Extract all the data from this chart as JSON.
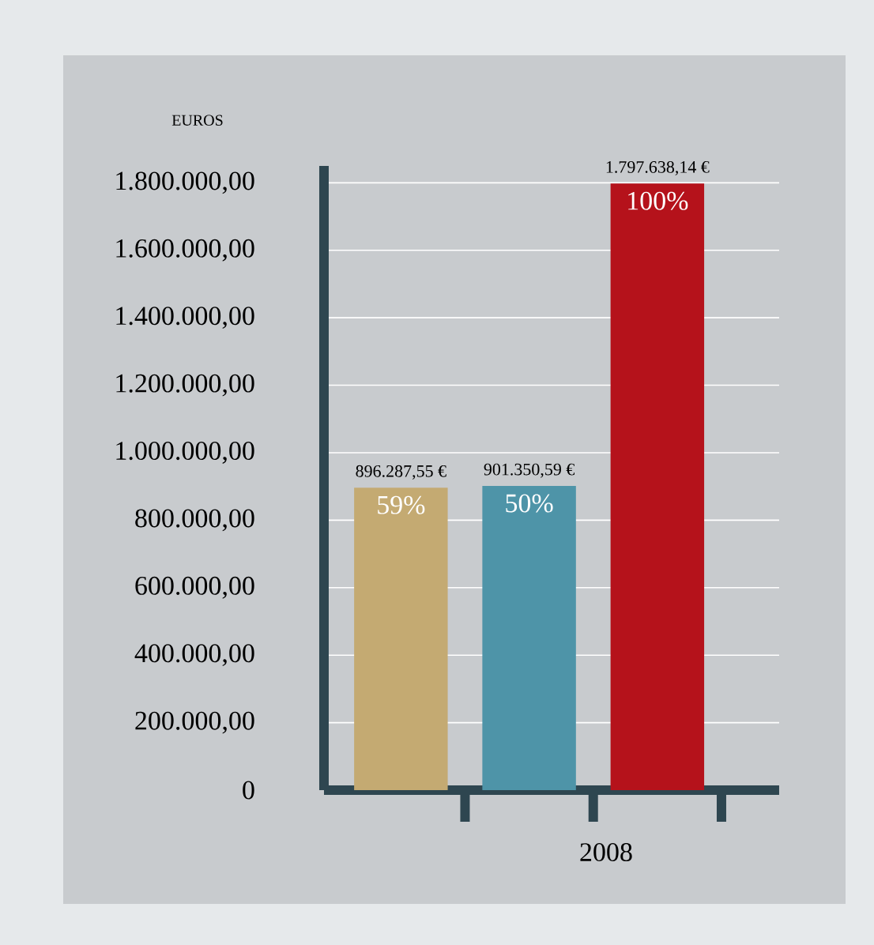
{
  "chart_data": {
    "type": "bar",
    "ylabel": "EUROS",
    "xlabel": "2008",
    "categories": [
      null,
      null,
      null
    ],
    "values": [
      896287.55,
      901350.59,
      1797638.14
    ],
    "colors": [
      "#c4aa72",
      "#4e94a8",
      "#b5121b"
    ],
    "value_labels": [
      "896.287,55 €",
      "901.350,59 €",
      "1.797.638,14 €"
    ],
    "annotations": [
      "59%",
      "50%",
      "100%"
    ],
    "ylim": [
      0,
      1850000
    ],
    "yticks": [
      0,
      {
        "value": 200000,
        "label": "200.000,00"
      },
      {
        "value": 400000,
        "label": "400.000,00"
      },
      {
        "value": 600000,
        "label": "600.000,00"
      },
      {
        "value": 800000,
        "label": "800.000,00"
      },
      {
        "value": 1000000,
        "label": "1.000.000,00"
      },
      {
        "value": 1200000,
        "label": "1.200.000,00"
      },
      {
        "value": 1400000,
        "label": "1.400.000,00"
      },
      {
        "value": 1600000,
        "label": "1.600.000,00"
      },
      {
        "value": 1800000,
        "label": "1.800.000,00"
      }
    ],
    "grid": "y"
  }
}
